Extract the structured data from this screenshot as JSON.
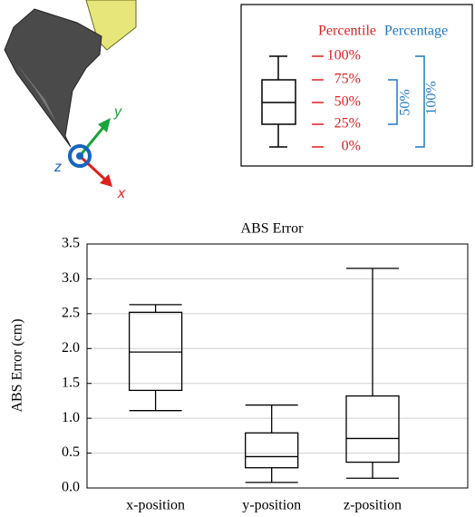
{
  "illustration": {
    "axis_labels": [
      "x",
      "y",
      "z"
    ]
  },
  "legend": {
    "headers": [
      "Percentile",
      "Percentage"
    ],
    "percentile_labels": [
      "100%",
      "75%",
      "50%",
      "25%",
      "0%"
    ],
    "percentage_labels": [
      "50%",
      "100%"
    ]
  },
  "chart_data": {
    "type": "box",
    "title": "ABS Error",
    "ylabel": "ABS Error (cm)",
    "categories": [
      "x-position",
      "y-position",
      "z-position"
    ],
    "boxes": [
      {
        "min": 1.11,
        "q1": 1.4,
        "median": 1.95,
        "q3": 2.52,
        "max": 2.63
      },
      {
        "min": 0.08,
        "q1": 0.29,
        "median": 0.45,
        "q3": 0.79,
        "max": 1.19
      },
      {
        "min": 0.14,
        "q1": 0.37,
        "median": 0.71,
        "q3": 1.32,
        "max": 3.15
      }
    ],
    "color": "#000000",
    "ylim": [
      0,
      3.5
    ],
    "yticks": [
      {
        "value": 0,
        "label": "0.0"
      },
      0.5,
      {
        "value": 1,
        "label": "1.0"
      },
      1.5,
      {
        "value": 2,
        "label": "2.0"
      },
      2.5,
      {
        "value": 3,
        "label": "3.0"
      },
      3.5
    ],
    "grid": true
  }
}
